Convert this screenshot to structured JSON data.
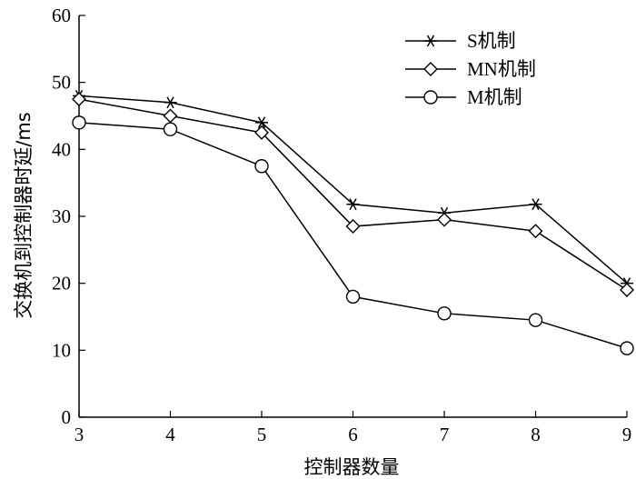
{
  "chart_data": {
    "type": "line",
    "title": "",
    "xlabel": "控制器数量",
    "ylabel": "交换机到控制器时延/ms",
    "x": [
      3,
      4,
      5,
      6,
      7,
      8,
      9
    ],
    "xlim": [
      3,
      9
    ],
    "ylim": [
      0,
      60
    ],
    "x_ticks": [
      3,
      4,
      5,
      6,
      7,
      8,
      9
    ],
    "y_ticks": [
      0,
      10,
      20,
      30,
      40,
      50,
      60
    ],
    "grid": false,
    "legend_position": "top-right",
    "series": [
      {
        "name": "S机制",
        "marker": "star",
        "values": [
          48.0,
          47.0,
          44.0,
          31.8,
          30.5,
          31.8,
          20.0
        ]
      },
      {
        "name": "MN机制",
        "marker": "diamond",
        "values": [
          47.5,
          45.0,
          42.5,
          28.5,
          29.5,
          27.8,
          19.0
        ]
      },
      {
        "name": "M机制",
        "marker": "circle",
        "values": [
          44.0,
          43.0,
          37.5,
          18.0,
          15.5,
          14.5,
          10.3
        ]
      }
    ],
    "colors": {
      "line": "#000000",
      "background": "#ffffff"
    }
  }
}
